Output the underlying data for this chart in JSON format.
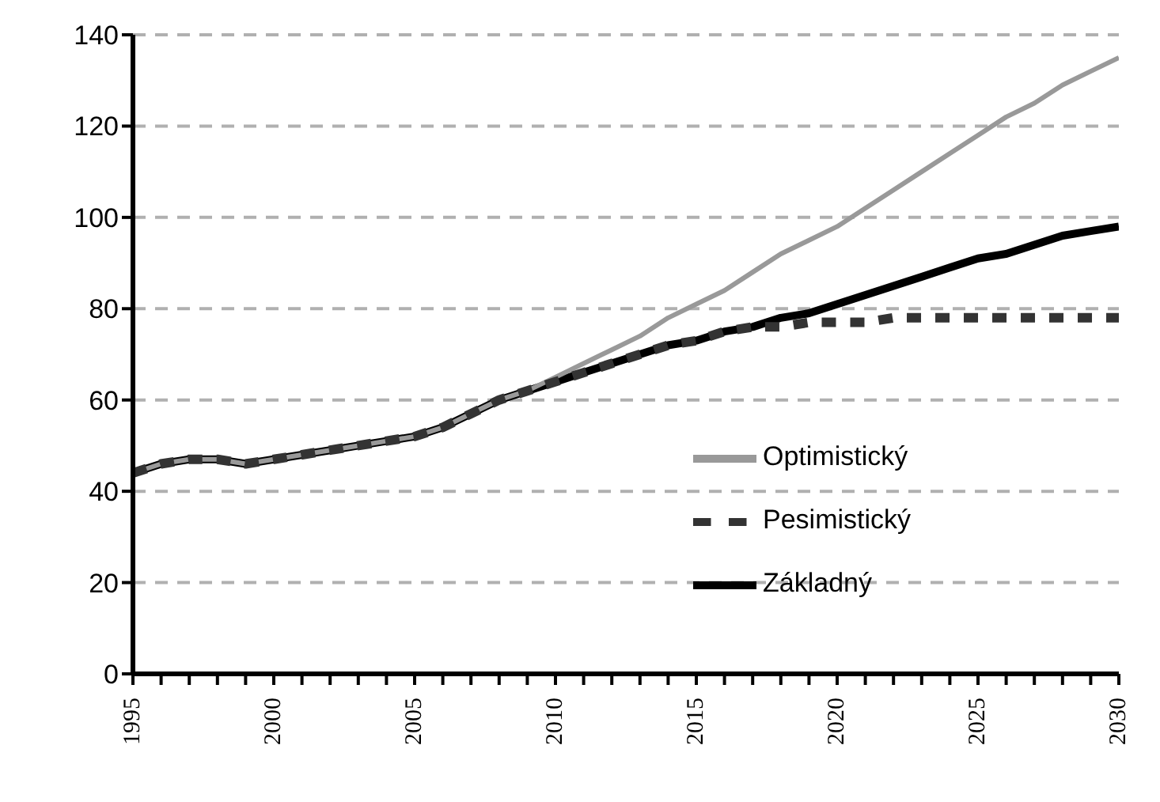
{
  "chart_data": {
    "type": "line",
    "x": [
      1995,
      1996,
      1997,
      1998,
      1999,
      2000,
      2001,
      2002,
      2003,
      2004,
      2005,
      2006,
      2007,
      2008,
      2009,
      2010,
      2011,
      2012,
      2013,
      2014,
      2015,
      2016,
      2017,
      2018,
      2019,
      2020,
      2021,
      2022,
      2023,
      2024,
      2025,
      2026,
      2027,
      2028,
      2029,
      2030
    ],
    "series": [
      {
        "name": "Základný",
        "color": "#000000",
        "line_style": "solid",
        "values": [
          44,
          46,
          47,
          47,
          46,
          47,
          48,
          49,
          50,
          51,
          52,
          54,
          57,
          60,
          62,
          64,
          66,
          68,
          70,
          72,
          73,
          75,
          76,
          78,
          79,
          81,
          83,
          85,
          87,
          89,
          91,
          92,
          94,
          96,
          97,
          98
        ]
      },
      {
        "name": "Optimistický",
        "color": "#999999",
        "line_style": "solid",
        "values": [
          44,
          46,
          47,
          47,
          46,
          47,
          48,
          49,
          50,
          51,
          52,
          54,
          57,
          60,
          62,
          65,
          68,
          71,
          74,
          78,
          81,
          84,
          88,
          92,
          95,
          98,
          102,
          106,
          110,
          114,
          118,
          122,
          125,
          129,
          132,
          135
        ]
      },
      {
        "name": "Pesimistický",
        "color": "#333333",
        "line_style": "dotted",
        "values": [
          44,
          46,
          47,
          47,
          46,
          47,
          48,
          49,
          50,
          51,
          52,
          54,
          57,
          60,
          62,
          64,
          66,
          68,
          70,
          72,
          73,
          75,
          76,
          76,
          77,
          77,
          77,
          78,
          78,
          78,
          78,
          78,
          78,
          78,
          78,
          78
        ]
      }
    ],
    "xlim": [
      1995,
      2030
    ],
    "xticks": [
      1995,
      {
        "value": 1996,
        "label": null
      },
      {
        "value": 1997,
        "label": null
      },
      {
        "value": 1998,
        "label": null
      },
      {
        "value": 1999,
        "label": null
      },
      2000,
      {
        "value": 2001,
        "label": null
      },
      {
        "value": 2002,
        "label": null
      },
      {
        "value": 2003,
        "label": null
      },
      {
        "value": 2004,
        "label": null
      },
      2005,
      {
        "value": 2006,
        "label": null
      },
      {
        "value": 2007,
        "label": null
      },
      {
        "value": 2008,
        "label": null
      },
      {
        "value": 2009,
        "label": null
      },
      2010,
      {
        "value": 2011,
        "label": null
      },
      {
        "value": 2012,
        "label": null
      },
      {
        "value": 2013,
        "label": null
      },
      {
        "value": 2014,
        "label": null
      },
      2015,
      {
        "value": 2016,
        "label": null
      },
      {
        "value": 2017,
        "label": null
      },
      {
        "value": 2018,
        "label": null
      },
      {
        "value": 2019,
        "label": null
      },
      2020,
      {
        "value": 2021,
        "label": null
      },
      {
        "value": 2022,
        "label": null
      },
      {
        "value": 2023,
        "label": null
      },
      {
        "value": 2024,
        "label": null
      },
      2025,
      {
        "value": 2026,
        "label": null
      },
      {
        "value": 2027,
        "label": null
      },
      {
        "value": 2028,
        "label": null
      },
      {
        "value": 2029,
        "label": null
      },
      2030
    ],
    "ylim": [
      0,
      140
    ],
    "yticks": [
      0,
      20,
      40,
      60,
      80,
      100,
      120,
      140
    ],
    "grid": "y",
    "legend": "bottom right",
    "marker": "none"
  }
}
